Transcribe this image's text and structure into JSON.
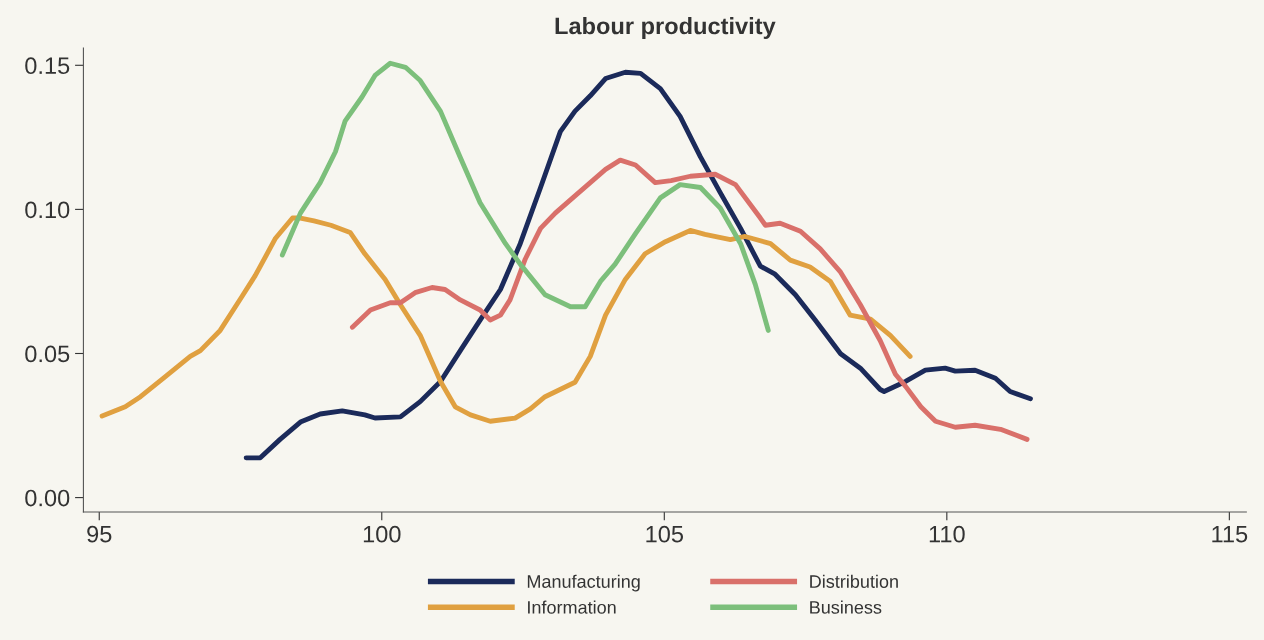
{
  "chart_data": {
    "type": "line",
    "title": "Labour productivity",
    "xlim": [
      94.72,
      115.3
    ],
    "ylim": [
      -0.005,
      0.156
    ],
    "xticks": [
      95,
      100,
      105,
      110,
      115
    ],
    "yticks": [
      {
        "value": 0.0,
        "label": "0.00"
      },
      {
        "value": 0.05,
        "label": "0.05"
      },
      {
        "value": 0.1,
        "label": "0.10"
      },
      {
        "value": 0.15,
        "label": "0.15"
      }
    ],
    "grid": false,
    "legend": "bottom",
    "marker": "none",
    "line_style": "solid",
    "series": [
      {
        "name": "Manufacturing",
        "color": "#1b2a5a",
        "x": [
          97.6,
          97.85,
          98.2,
          98.56,
          98.91,
          99.3,
          99.7,
          99.88,
          100.33,
          100.68,
          101.04,
          101.39,
          101.74,
          102.1,
          102.45,
          102.81,
          103.16,
          103.42,
          103.69,
          103.96,
          104.31,
          104.58,
          104.93,
          105.28,
          105.64,
          105.99,
          106.35,
          106.7,
          106.96,
          107.32,
          107.67,
          108.12,
          108.47,
          108.82,
          108.89,
          109.27,
          109.62,
          109.97,
          110.15,
          110.5,
          110.86,
          111.12,
          111.48
        ],
        "values": [
          0.0138,
          0.0138,
          0.0202,
          0.0262,
          0.029,
          0.0301,
          0.0287,
          0.0276,
          0.028,
          0.0333,
          0.0403,
          0.051,
          0.0616,
          0.0722,
          0.0881,
          0.1076,
          0.127,
          0.1341,
          0.1394,
          0.1454,
          0.1476,
          0.1472,
          0.1419,
          0.1323,
          0.1182,
          0.1058,
          0.0934,
          0.0803,
          0.0775,
          0.0704,
          0.0616,
          0.0499,
          0.0449,
          0.0375,
          0.0368,
          0.0403,
          0.0442,
          0.0449,
          0.0439,
          0.0442,
          0.0414,
          0.0368,
          0.0343
        ]
      },
      {
        "name": "Information",
        "color": "#e0a040",
        "x": [
          95.05,
          95.46,
          95.73,
          96.17,
          96.61,
          96.79,
          97.14,
          97.5,
          97.76,
          98.12,
          98.42,
          98.56,
          98.8,
          99.1,
          99.44,
          99.7,
          100.06,
          100.33,
          100.68,
          101.04,
          101.3,
          101.57,
          101.92,
          102.36,
          102.63,
          102.89,
          103.42,
          103.69,
          103.96,
          104.31,
          104.66,
          105.02,
          105.46,
          105.72,
          106.17,
          106.43,
          106.88,
          107.23,
          107.58,
          107.94,
          108.29,
          108.65,
          109.0,
          109.35
        ],
        "values": [
          0.0283,
          0.0315,
          0.035,
          0.042,
          0.049,
          0.051,
          0.058,
          0.069,
          0.077,
          0.09,
          0.097,
          0.097,
          0.096,
          0.0945,
          0.092,
          0.0846,
          0.0757,
          0.0669,
          0.0563,
          0.0403,
          0.0315,
          0.0287,
          0.0265,
          0.0276,
          0.0308,
          0.035,
          0.04,
          0.049,
          0.0633,
          0.0757,
          0.0846,
          0.0888,
          0.0927,
          0.0913,
          0.0895,
          0.0906,
          0.0881,
          0.0824,
          0.08,
          0.075,
          0.0633,
          0.0619,
          0.0563,
          0.049
        ]
      },
      {
        "name": "Distribution",
        "color": "#d9706a",
        "x": [
          99.48,
          99.8,
          100.15,
          100.33,
          100.59,
          100.89,
          101.12,
          101.39,
          101.74,
          101.92,
          102.1,
          102.27,
          102.54,
          102.81,
          103.07,
          103.42,
          103.69,
          103.96,
          104.22,
          104.49,
          104.84,
          105.12,
          105.46,
          105.9,
          106.26,
          106.7,
          106.79,
          107.05,
          107.41,
          107.76,
          108.12,
          108.47,
          108.82,
          109.09,
          109.27,
          109.54,
          109.8,
          110.15,
          110.5,
          110.95,
          111.42
        ],
        "values": [
          0.0591,
          0.0651,
          0.0676,
          0.0676,
          0.0711,
          0.0729,
          0.0722,
          0.0686,
          0.0651,
          0.0616,
          0.0633,
          0.0686,
          0.0828,
          0.0934,
          0.0987,
          0.1047,
          0.1093,
          0.1139,
          0.1171,
          0.1154,
          0.1093,
          0.11,
          0.1115,
          0.1122,
          0.1086,
          0.097,
          0.0945,
          0.0952,
          0.0924,
          0.0863,
          0.0782,
          0.0669,
          0.0545,
          0.0428,
          0.0386,
          0.0315,
          0.0265,
          0.0244,
          0.0251,
          0.0237,
          0.0202
        ]
      },
      {
        "name": "Business",
        "color": "#7cbf7b",
        "x": [
          98.24,
          98.56,
          98.91,
          99.18,
          99.35,
          99.65,
          99.88,
          100.15,
          100.42,
          100.68,
          101.04,
          101.39,
          101.74,
          102.19,
          102.45,
          102.89,
          103.34,
          103.6,
          103.87,
          104.13,
          104.49,
          104.93,
          105.28,
          105.64,
          105.99,
          106.35,
          106.61,
          106.84
        ],
        "values": [
          0.0842,
          0.0987,
          0.1093,
          0.12,
          0.1306,
          0.139,
          0.1465,
          0.1507,
          0.1493,
          0.1447,
          0.134,
          0.118,
          0.1023,
          0.0881,
          0.081,
          0.0704,
          0.0662,
          0.0662,
          0.075,
          0.081,
          0.0916,
          0.104,
          0.1086,
          0.1076,
          0.1005,
          0.0881,
          0.074,
          0.058
        ]
      }
    ]
  }
}
